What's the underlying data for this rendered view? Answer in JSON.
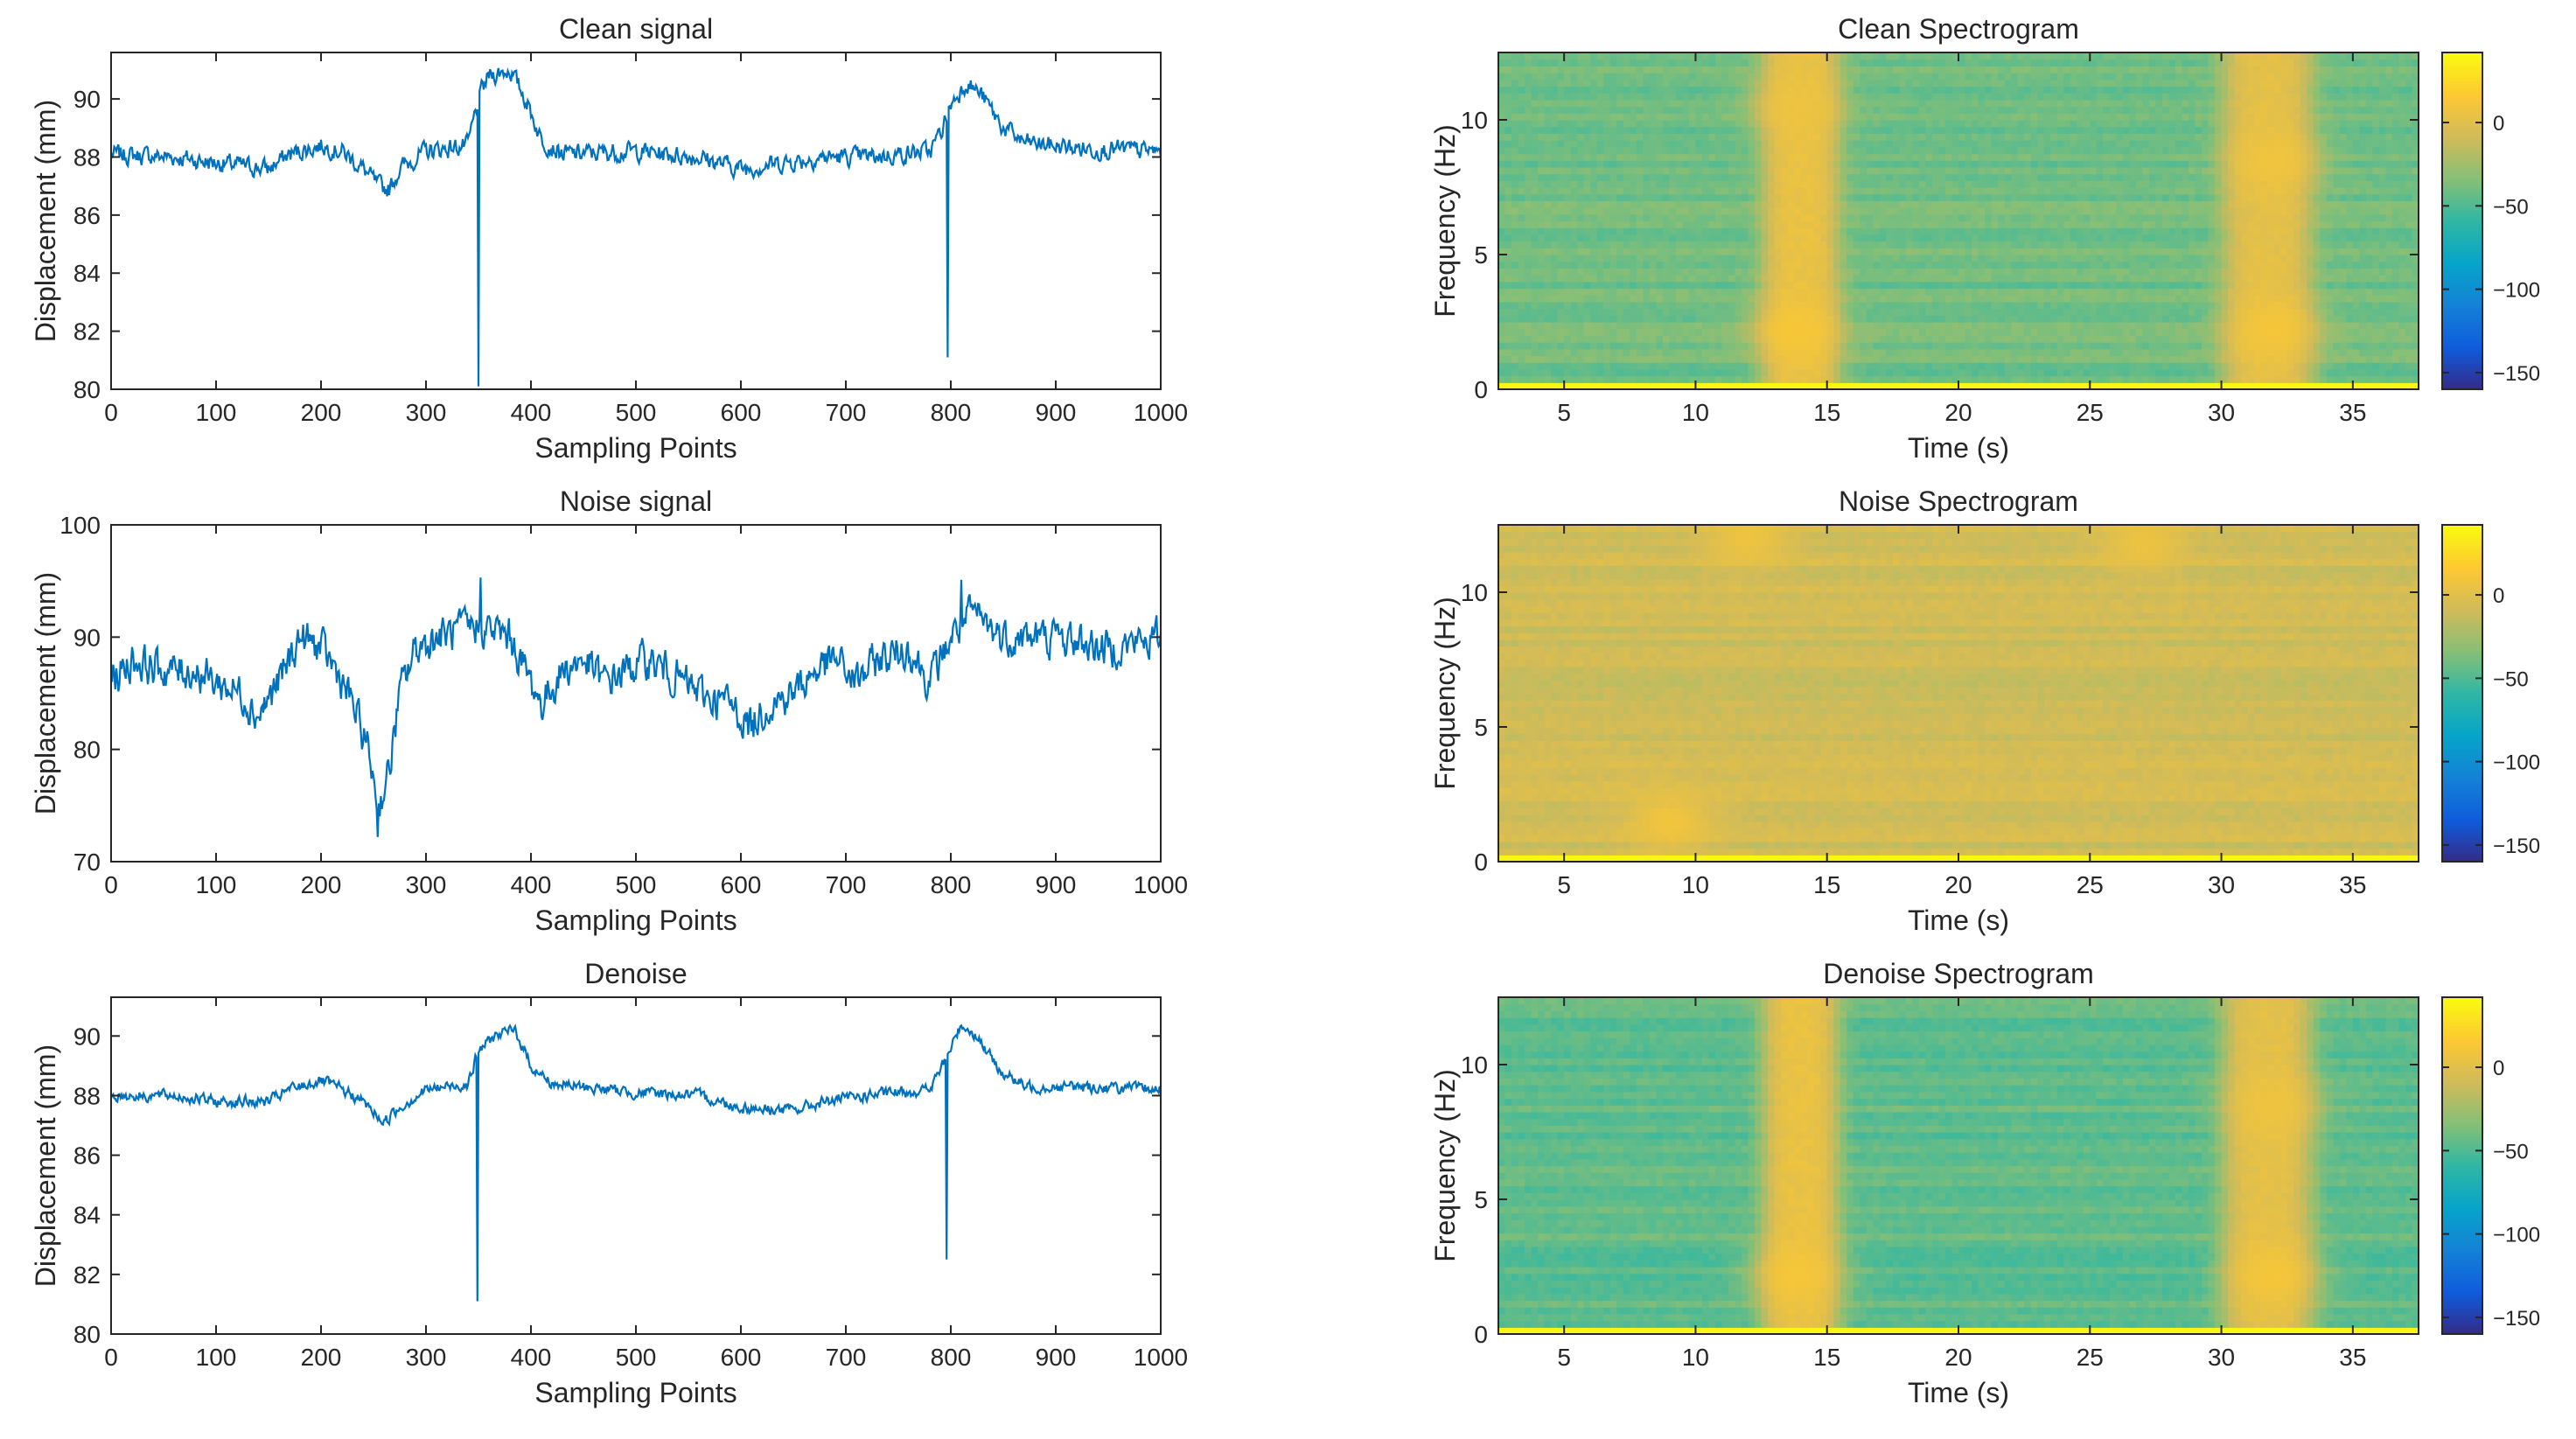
{
  "colors": {
    "line": "#0072BD",
    "axis": "#262626",
    "parula": [
      "#352A87",
      "#0F5CDD",
      "#1481D6",
      "#06A4CA",
      "#2EB7A4",
      "#87BF77",
      "#D1BB59",
      "#FEC832",
      "#F9FB0E"
    ]
  },
  "chart_data": [
    {
      "id": "clean-signal",
      "type": "line",
      "title": "Clean signal",
      "xlabel": "Sampling Points",
      "ylabel": "Displacement (mm)",
      "xlim": [
        0,
        1000
      ],
      "ylim": [
        80,
        91.6
      ],
      "xticks": [
        0,
        100,
        200,
        300,
        400,
        500,
        600,
        700,
        800,
        900,
        1000
      ],
      "yticks": [
        80,
        82,
        84,
        86,
        88,
        90
      ],
      "series": [
        {
          "name": "Clean signal",
          "baseline": [
            [
              0,
              88.1
            ],
            [
              60,
              88.0
            ],
            [
              100,
              87.8
            ],
            [
              150,
              87.6
            ],
            [
              170,
              88.1
            ],
            [
              200,
              88.4
            ],
            [
              220,
              88.2
            ],
            [
              240,
              87.6
            ],
            [
              255,
              87.0
            ],
            [
              265,
              86.9
            ],
            [
              275,
              87.6
            ],
            [
              300,
              88.2
            ],
            [
              340,
              88.4
            ],
            [
              345,
              89.2
            ],
            [
              350,
              90.0
            ],
            [
              360,
              90.8
            ],
            [
              380,
              91.0
            ],
            [
              395,
              90.0
            ],
            [
              410,
              88.6
            ],
            [
              430,
              88.1
            ],
            [
              500,
              88.2
            ],
            [
              560,
              88.0
            ],
            [
              600,
              87.6
            ],
            [
              640,
              87.8
            ],
            [
              680,
              88.0
            ],
            [
              720,
              88.0
            ],
            [
              780,
              88.2
            ],
            [
              790,
              88.8
            ],
            [
              800,
              89.8
            ],
            [
              815,
              90.6
            ],
            [
              830,
              90.1
            ],
            [
              850,
              89.0
            ],
            [
              870,
              88.5
            ],
            [
              920,
              88.3
            ],
            [
              1000,
              88.2
            ]
          ],
          "noise": 0.5,
          "spikes": [
            [
              350,
              80.1
            ],
            [
              797,
              81.1
            ]
          ]
        }
      ]
    },
    {
      "id": "noise-signal",
      "type": "line",
      "title": "Noise signal",
      "xlabel": "Sampling Points",
      "ylabel": "Displacement (mm)",
      "xlim": [
        0,
        1000
      ],
      "ylim": [
        70,
        100
      ],
      "xticks": [
        0,
        100,
        200,
        300,
        400,
        500,
        600,
        700,
        800,
        900,
        1000
      ],
      "yticks": [
        70,
        80,
        90,
        100
      ],
      "series": [
        {
          "name": "Noise signal",
          "baseline": [
            [
              0,
              86
            ],
            [
              20,
              88
            ],
            [
              50,
              87
            ],
            [
              80,
              87
            ],
            [
              100,
              86
            ],
            [
              125,
              85
            ],
            [
              140,
              83
            ],
            [
              160,
              86
            ],
            [
              180,
              90
            ],
            [
              200,
              89
            ],
            [
              215,
              87
            ],
            [
              230,
              84
            ],
            [
              245,
              80
            ],
            [
              255,
              75
            ],
            [
              265,
              78
            ],
            [
              275,
              85
            ],
            [
              290,
              89
            ],
            [
              310,
              90
            ],
            [
              350,
              91
            ],
            [
              380,
              90
            ],
            [
              410,
              84
            ],
            [
              430,
              87
            ],
            [
              450,
              88
            ],
            [
              470,
              86
            ],
            [
              490,
              87
            ],
            [
              510,
              88
            ],
            [
              530,
              87
            ],
            [
              560,
              85
            ],
            [
              590,
              84
            ],
            [
              610,
              82
            ],
            [
              625,
              84
            ],
            [
              650,
              85
            ],
            [
              670,
              87
            ],
            [
              690,
              88
            ],
            [
              710,
              86
            ],
            [
              730,
              88
            ],
            [
              760,
              89
            ],
            [
              780,
              86
            ],
            [
              800,
              90
            ],
            [
              820,
              92
            ],
            [
              850,
              90
            ],
            [
              900,
              90
            ],
            [
              950,
              89
            ],
            [
              1000,
              90
            ]
          ],
          "noise": 2.6,
          "spikes": [
            [
              254,
              72.2
            ],
            [
              352,
              95.3
            ],
            [
              810,
              95.1
            ]
          ]
        }
      ]
    },
    {
      "id": "denoise-signal",
      "type": "line",
      "title": "Denoise",
      "xlabel": "Sampling Points",
      "ylabel": "Displacement (mm)",
      "xlim": [
        0,
        1000
      ],
      "ylim": [
        80,
        91.3
      ],
      "xticks": [
        0,
        100,
        200,
        300,
        400,
        500,
        600,
        700,
        800,
        900,
        1000
      ],
      "yticks": [
        80,
        82,
        84,
        86,
        88,
        90
      ],
      "series": [
        {
          "name": "Denoise",
          "baseline": [
            [
              0,
              88.0
            ],
            [
              60,
              88.0
            ],
            [
              100,
              87.8
            ],
            [
              150,
              87.8
            ],
            [
              170,
              88.2
            ],
            [
              200,
              88.5
            ],
            [
              220,
              88.2
            ],
            [
              240,
              87.8
            ],
            [
              260,
              87.1
            ],
            [
              275,
              87.6
            ],
            [
              300,
              88.2
            ],
            [
              340,
              88.4
            ],
            [
              350,
              89.5
            ],
            [
              365,
              90.0
            ],
            [
              385,
              90.2
            ],
            [
              400,
              89.0
            ],
            [
              420,
              88.4
            ],
            [
              500,
              88.1
            ],
            [
              560,
              88.0
            ],
            [
              600,
              87.6
            ],
            [
              650,
              87.5
            ],
            [
              680,
              87.8
            ],
            [
              720,
              88.0
            ],
            [
              780,
              88.2
            ],
            [
              795,
              89.2
            ],
            [
              810,
              90.4
            ],
            [
              825,
              90.0
            ],
            [
              845,
              88.9
            ],
            [
              870,
              88.3
            ],
            [
              920,
              88.3
            ],
            [
              1000,
              88.2
            ]
          ],
          "noise": 0.3,
          "spikes": [
            [
              349,
              81.1
            ],
            [
              796,
              82.5
            ]
          ]
        }
      ]
    },
    {
      "id": "clean-spectrogram",
      "type": "heatmap",
      "title": "Clean Spectrogram",
      "xlabel": "Time (s)",
      "ylabel": "Frequency (Hz)",
      "xlim": [
        2.5,
        37.5
      ],
      "ylim": [
        0,
        12.5
      ],
      "xticks": [
        5,
        10,
        15,
        20,
        25,
        30,
        35
      ],
      "yticks": [
        0,
        5,
        10
      ],
      "colorbar": {
        "clim": [
          -160,
          42
        ],
        "ticks": [
          0,
          -50,
          -100,
          -150
        ]
      },
      "base_db": -40,
      "noise_db": 9,
      "hot_bands": [
        {
          "t": [
            12.5,
            15.5
          ],
          "db": 5
        },
        {
          "t": [
            30.0,
            33.5
          ],
          "db": 2
        }
      ],
      "hot_spots": [
        {
          "t": 13.8,
          "f": 2.2,
          "db": 13
        },
        {
          "t": 32.0,
          "f": 2.2,
          "db": 12
        },
        {
          "t": 32.0,
          "f": 8.5,
          "db": 9
        },
        {
          "t": 13.8,
          "f": 10.5,
          "db": 7
        }
      ]
    },
    {
      "id": "noise-spectrogram",
      "type": "heatmap",
      "title": "Noise Spectrogram",
      "xlabel": "Time (s)",
      "ylabel": "Frequency (Hz)",
      "xlim": [
        2.5,
        37.5
      ],
      "ylim": [
        0,
        12.5
      ],
      "xticks": [
        5,
        10,
        15,
        20,
        25,
        30,
        35
      ],
      "yticks": [
        0,
        5,
        10
      ],
      "colorbar": {
        "clim": [
          -160,
          42
        ],
        "ticks": [
          0,
          -50,
          -100,
          -150
        ]
      },
      "base_db": -8,
      "noise_db": 8,
      "hot_bands": [],
      "hot_spots": [
        {
          "t": 9.0,
          "f": 1.5,
          "db": 10
        },
        {
          "t": 12.0,
          "f": 12.0,
          "db": 8
        },
        {
          "t": 27.0,
          "f": 11.8,
          "db": 7
        }
      ]
    },
    {
      "id": "denoise-spectrogram",
      "type": "heatmap",
      "title": "Denoise Spectrogram",
      "xlabel": "Time (s)",
      "ylabel": "Frequency (Hz)",
      "xlim": [
        2.5,
        37.5
      ],
      "ylim": [
        0,
        12.5
      ],
      "xticks": [
        5,
        10,
        15,
        20,
        25,
        30,
        35
      ],
      "yticks": [
        0,
        5,
        10
      ],
      "colorbar": {
        "clim": [
          -160,
          42
        ],
        "ticks": [
          0,
          -50,
          -100,
          -150
        ]
      },
      "base_db": -45,
      "noise_db": 9,
      "hot_bands": [
        {
          "t": [
            12.5,
            15.5
          ],
          "db": 5
        },
        {
          "t": [
            30.0,
            33.5
          ],
          "db": 2
        }
      ],
      "hot_spots": [
        {
          "t": 13.8,
          "f": 2.2,
          "db": 12
        },
        {
          "t": 32.0,
          "f": 2.2,
          "db": 12
        },
        {
          "t": 32.0,
          "f": 8.5,
          "db": 8
        }
      ]
    }
  ]
}
